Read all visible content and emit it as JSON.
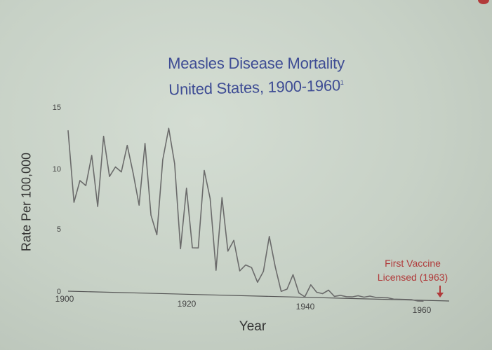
{
  "chart_data": {
    "type": "line",
    "title_line1": "Measles Disease Mortality",
    "title_line2": "United States, 1900-1960",
    "title_superscript": "1",
    "xlabel": "Year",
    "ylabel": "Rate Per 100,000",
    "xlim": [
      1900,
      1963
    ],
    "ylim": [
      0,
      15
    ],
    "x_ticks": [
      "1900",
      "1920",
      "1940",
      "1960"
    ],
    "y_ticks": [
      "0",
      "5",
      "10",
      "15"
    ],
    "grid": false,
    "annotation": {
      "text_line1": "First Vaccine",
      "text_line2": "Licensed (1963)",
      "year": 1963,
      "color": "#b03a3a"
    },
    "series": [
      {
        "color": "#6b6b6b",
        "x": [
          1900,
          1901,
          1902,
          1903,
          1904,
          1905,
          1906,
          1907,
          1908,
          1909,
          1910,
          1911,
          1912,
          1913,
          1914,
          1915,
          1916,
          1917,
          1918,
          1919,
          1920,
          1921,
          1922,
          1923,
          1924,
          1925,
          1926,
          1927,
          1928,
          1929,
          1930,
          1931,
          1932,
          1933,
          1934,
          1935,
          1936,
          1937,
          1938,
          1939,
          1940,
          1941,
          1942,
          1943,
          1944,
          1945,
          1946,
          1947,
          1948,
          1949,
          1950,
          1951,
          1952,
          1953,
          1954,
          1955,
          1956,
          1957,
          1958,
          1959,
          1960
        ],
        "values": [
          13.3,
          7.4,
          9.2,
          8.8,
          11.3,
          7.1,
          12.9,
          9.6,
          10.4,
          10.0,
          12.2,
          9.9,
          7.3,
          12.4,
          6.5,
          4.9,
          11.1,
          13.7,
          10.8,
          3.8,
          8.8,
          3.9,
          3.9,
          10.3,
          8.0,
          2.1,
          8.1,
          3.7,
          4.6,
          2.1,
          2.6,
          2.4,
          1.2,
          2.1,
          5.0,
          2.5,
          0.5,
          0.7,
          1.9,
          0.4,
          0.1,
          1.1,
          0.5,
          0.4,
          0.7,
          0.2,
          0.3,
          0.2,
          0.2,
          0.3,
          0.2,
          0.3,
          0.2,
          0.2,
          0.2,
          0.1,
          0.1,
          0.1,
          0.1,
          0.0,
          0.0
        ]
      }
    ]
  }
}
